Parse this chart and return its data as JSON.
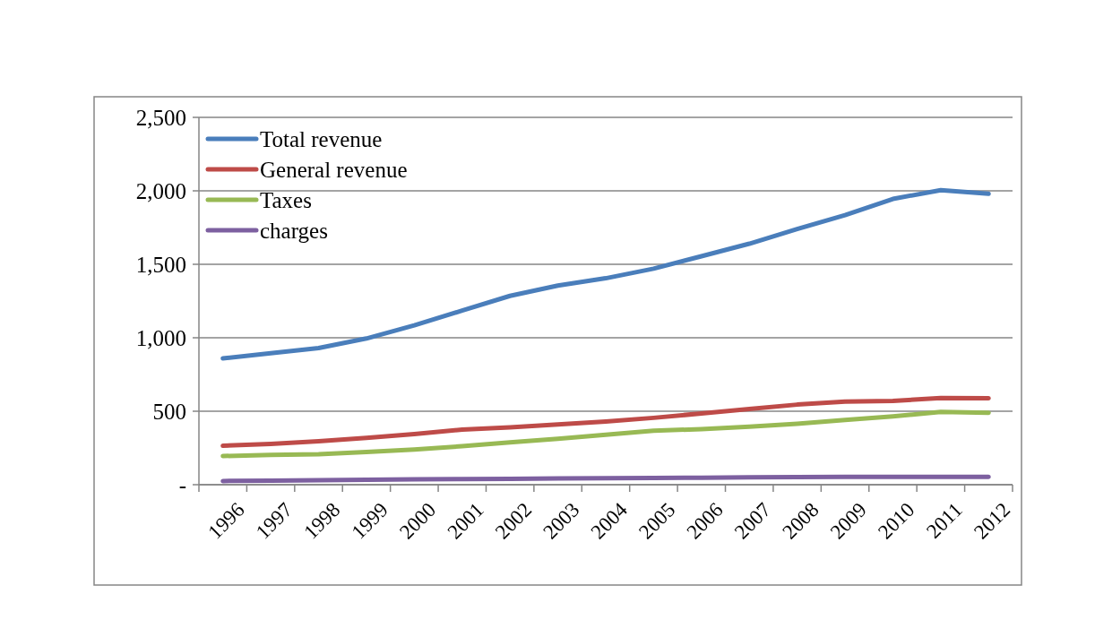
{
  "chart_data": {
    "type": "line",
    "categories": [
      "1996",
      "1997",
      "1998",
      "1999",
      "2000",
      "2001",
      "2002",
      "2003",
      "2004",
      "2005",
      "2006",
      "2007",
      "2008",
      "2009",
      "2010",
      "2011",
      "2012"
    ],
    "series": [
      {
        "name": "Total revenue",
        "color": "#4a7ebb",
        "values": [
          860,
          895,
          930,
          995,
          1085,
          1185,
          1285,
          1355,
          1405,
          1470,
          1555,
          1640,
          1740,
          1835,
          1945,
          2005,
          1980
        ]
      },
      {
        "name": "General revenue",
        "color": "#be4b48",
        "values": [
          265,
          278,
          295,
          318,
          345,
          375,
          390,
          410,
          430,
          455,
          485,
          515,
          545,
          565,
          570,
          590,
          588
        ]
      },
      {
        "name": "Taxes",
        "color": "#98b954",
        "values": [
          195,
          202,
          208,
          222,
          240,
          262,
          288,
          312,
          340,
          368,
          378,
          395,
          415,
          440,
          465,
          495,
          490
        ]
      },
      {
        "name": "charges",
        "color": "#7d60a0",
        "values": [
          25,
          28,
          30,
          33,
          36,
          38,
          40,
          43,
          44,
          46,
          48,
          50,
          52,
          53,
          53,
          54,
          53
        ]
      }
    ],
    "ylim": [
      0,
      2500
    ],
    "yticks": [
      {
        "value": 0,
        "label": "-"
      },
      500,
      {
        "value": 1000,
        "label": "1,000"
      },
      {
        "value": 1500,
        "label": "1,500"
      },
      {
        "value": 2000,
        "label": "2,000"
      },
      {
        "value": 2500,
        "label": "2,500"
      }
    ],
    "grid": "y",
    "legend": "top left",
    "marker": "none",
    "line_style": "solid"
  }
}
